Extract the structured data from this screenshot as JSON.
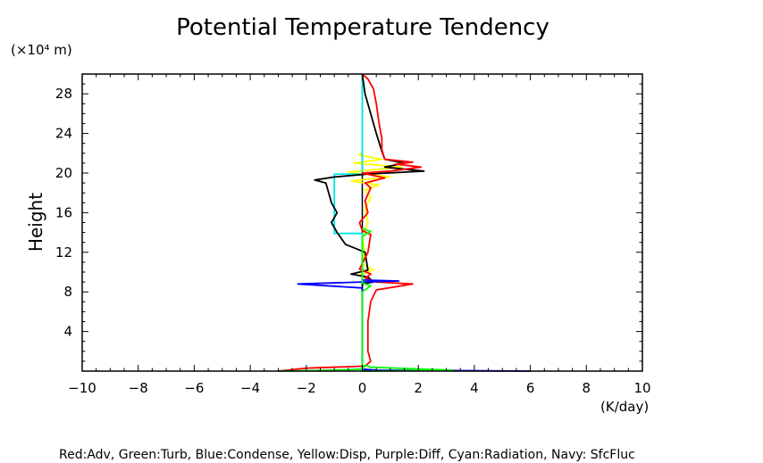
{
  "chart_data": {
    "type": "line",
    "title": "Potential Temperature Tendency",
    "y_unit_label": "(×10⁴ m)",
    "ylabel": "Height",
    "xlabel": "(K/day)",
    "xlim": [
      -10,
      10
    ],
    "ylim": [
      0,
      30
    ],
    "x_ticks": [
      "−10",
      "−8",
      "−6",
      "−4",
      "−2",
      "0",
      "2",
      "4",
      "6",
      "8",
      "10"
    ],
    "y_ticks": [
      "4",
      "8",
      "12",
      "16",
      "20",
      "24",
      "28"
    ],
    "grid": false,
    "legend_text": "Red:Adv, Green:Turb, Blue:Condense, Yellow:Disp, Purple:Diff, Cyan:Radiation, Navy: SfcFluc",
    "series": [
      {
        "name": "Yellow:Disp",
        "color": "#ffff00",
        "points": [
          [
            0,
            0
          ],
          [
            0,
            9.0
          ],
          [
            0.3,
            9.3
          ],
          [
            -0.1,
            9.7
          ],
          [
            0.4,
            10.2
          ],
          [
            0,
            10.8
          ],
          [
            0.1,
            12
          ],
          [
            0,
            13.5
          ],
          [
            0.2,
            15
          ],
          [
            0.1,
            16.5
          ],
          [
            0.3,
            17.5
          ],
          [
            0.1,
            18.3
          ],
          [
            0.6,
            18.8
          ],
          [
            -0.4,
            19.2
          ],
          [
            1.0,
            19.6
          ],
          [
            -0.5,
            20.1
          ],
          [
            1.4,
            20.6
          ],
          [
            -0.3,
            21.0
          ],
          [
            0.7,
            21.4
          ],
          [
            -0.1,
            21.8
          ],
          [
            0,
            22.2
          ],
          [
            0,
            30
          ]
        ]
      },
      {
        "name": "Cyan:Radiation",
        "color": "#00e5ee",
        "points": [
          [
            0,
            0
          ],
          [
            0,
            13.9
          ],
          [
            -1.0,
            13.9
          ],
          [
            -1.0,
            19.9
          ],
          [
            0,
            19.9
          ],
          [
            0,
            30
          ]
        ]
      },
      {
        "name": "Black",
        "color": "#000000",
        "points": [
          [
            0,
            0
          ],
          [
            0,
            8.8
          ],
          [
            0.4,
            9.0
          ],
          [
            0.2,
            9.5
          ],
          [
            -0.4,
            9.8
          ],
          [
            0.2,
            10.2
          ],
          [
            0.1,
            12
          ],
          [
            -0.6,
            12.8
          ],
          [
            -0.9,
            14
          ],
          [
            -1.1,
            15.0
          ],
          [
            -0.9,
            16
          ],
          [
            -1.1,
            17
          ],
          [
            -1.2,
            18.0
          ],
          [
            -1.3,
            19.0
          ],
          [
            -1.7,
            19.3
          ],
          [
            -1.0,
            19.6
          ],
          [
            0.2,
            19.9
          ],
          [
            2.2,
            20.2
          ],
          [
            0.8,
            20.6
          ],
          [
            1.5,
            21.0
          ],
          [
            0.8,
            21.4
          ],
          [
            0.7,
            22.2
          ],
          [
            0.5,
            24
          ],
          [
            0.3,
            26
          ],
          [
            0.1,
            28
          ],
          [
            0,
            30
          ]
        ]
      },
      {
        "name": "Red:Adv",
        "color": "#ff0000",
        "points": [
          [
            -3.0,
            0
          ],
          [
            -2.0,
            0.3
          ],
          [
            0.1,
            0.5
          ],
          [
            0.3,
            1.0
          ],
          [
            0.2,
            2
          ],
          [
            0.2,
            5
          ],
          [
            0.3,
            7
          ],
          [
            0.5,
            8.2
          ],
          [
            1.8,
            8.8
          ],
          [
            0.5,
            9.0
          ],
          [
            0.1,
            9.4
          ],
          [
            0.3,
            9.8
          ],
          [
            -0.1,
            10.3
          ],
          [
            0.2,
            12
          ],
          [
            0.3,
            13.8
          ],
          [
            0,
            14.2
          ],
          [
            -0.1,
            15.0
          ],
          [
            0.2,
            16.0
          ],
          [
            0.1,
            17.2
          ],
          [
            0.3,
            18.5
          ],
          [
            0.1,
            19.0
          ],
          [
            0.8,
            19.5
          ],
          [
            0,
            20.0
          ],
          [
            1.0,
            20.2
          ],
          [
            2.1,
            20.6
          ],
          [
            1.2,
            20.9
          ],
          [
            1.8,
            21.1
          ],
          [
            0.8,
            21.4
          ],
          [
            0.7,
            22.4
          ],
          [
            0.7,
            23.5
          ],
          [
            0.6,
            25
          ],
          [
            0.5,
            27
          ],
          [
            0.4,
            28.5
          ],
          [
            0.2,
            29.5
          ],
          [
            0,
            30
          ]
        ]
      },
      {
        "name": "Blue:Condense",
        "color": "#0000ff",
        "points": [
          [
            6.0,
            0
          ],
          [
            0.5,
            0.1
          ],
          [
            0,
            0.2
          ],
          [
            0,
            8.4
          ],
          [
            -2.3,
            8.8
          ],
          [
            0,
            9.0
          ],
          [
            1.3,
            9.1
          ],
          [
            0,
            9.2
          ],
          [
            0,
            9.5
          ]
        ]
      },
      {
        "name": "Green:Turb",
        "color": "#00ff00",
        "points": [
          [
            -2.9,
            0
          ],
          [
            -1.0,
            0.1
          ],
          [
            0,
            0.2
          ],
          [
            0.1,
            0.6
          ],
          [
            0.3,
            0.4
          ],
          [
            3.2,
            0.1
          ],
          [
            0,
            0
          ],
          [
            0,
            8.0
          ],
          [
            0.3,
            8.6
          ],
          [
            0,
            8.9
          ],
          [
            0,
            13.6
          ],
          [
            0.3,
            14.1
          ],
          [
            0,
            14.4
          ]
        ]
      }
    ]
  }
}
